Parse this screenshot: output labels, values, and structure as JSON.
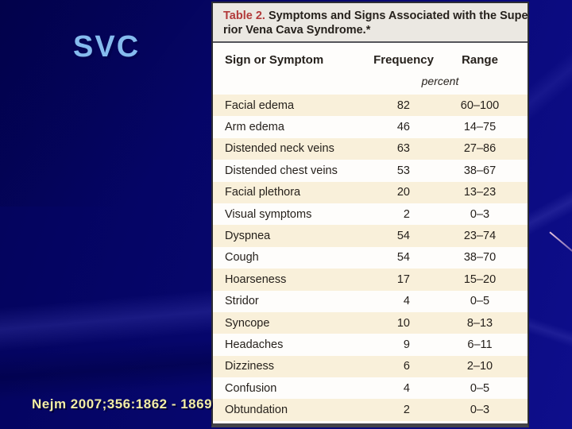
{
  "slide": {
    "title": "SVC",
    "citation": "Nejm 2007;356:1862 - 1869"
  },
  "colors": {
    "background_left": "#03035a",
    "background_right": "#0e0e8c",
    "title_text": "#85bbee",
    "citation_text": "#f2eda4",
    "caption_accent": "#b23a3a",
    "caption_band_bg": "#ebe8e2",
    "row_stripe_bg": "#f9f0da",
    "table_bg": "#fefdfb"
  },
  "figure": {
    "caption_label": "Table 2.",
    "caption_line1": " Symptoms and Signs Associated with the Supe-",
    "caption_line2": "rior Vena Cava Syndrome.*",
    "columns": {
      "sign": "Sign or Symptom",
      "frequency": "Frequency",
      "range": "Range"
    },
    "unit_label": "percent",
    "rows": [
      {
        "sign": "Facial edema",
        "frequency": "82",
        "range": "60–100"
      },
      {
        "sign": "Arm edema",
        "frequency": "46",
        "range": "14–75"
      },
      {
        "sign": "Distended neck veins",
        "frequency": "63",
        "range": "27–86"
      },
      {
        "sign": "Distended chest veins",
        "frequency": "53",
        "range": "38–67"
      },
      {
        "sign": "Facial plethora",
        "frequency": "20",
        "range": "13–23"
      },
      {
        "sign": "Visual symptoms",
        "frequency": "2",
        "range": "0–3"
      },
      {
        "sign": "Dyspnea",
        "frequency": "54",
        "range": "23–74"
      },
      {
        "sign": "Cough",
        "frequency": "54",
        "range": "38–70"
      },
      {
        "sign": "Hoarseness",
        "frequency": "17",
        "range": "15–20"
      },
      {
        "sign": "Stridor",
        "frequency": "4",
        "range": "0–5"
      },
      {
        "sign": "Syncope",
        "frequency": "10",
        "range": "8–13"
      },
      {
        "sign": "Headaches",
        "frequency": "9",
        "range": "6–11"
      },
      {
        "sign": "Dizziness",
        "frequency": "6",
        "range": "2–10"
      },
      {
        "sign": "Confusion",
        "frequency": "4",
        "range": "0–5"
      },
      {
        "sign": "Obtundation",
        "frequency": "2",
        "range": "0–3"
      }
    ]
  }
}
